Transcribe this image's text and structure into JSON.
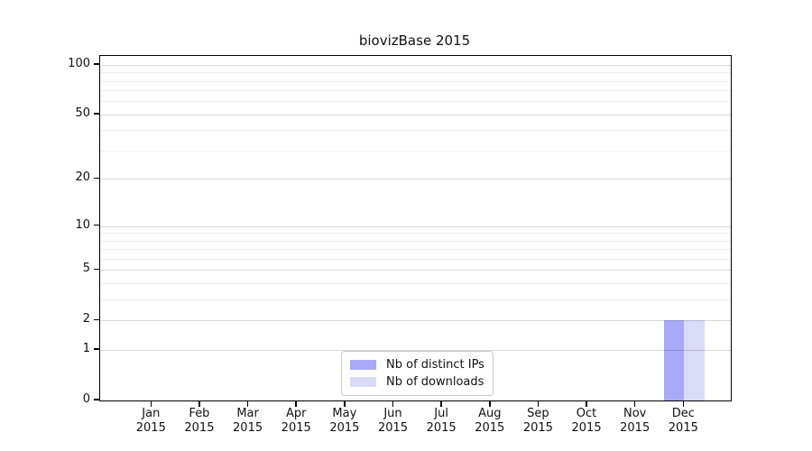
{
  "chart_data": {
    "type": "bar",
    "title": "biovizBase 2015",
    "categories": [
      "Jan 2015",
      "Feb 2015",
      "Mar 2015",
      "Apr 2015",
      "May 2015",
      "Jun 2015",
      "Jul 2015",
      "Aug 2015",
      "Sep 2015",
      "Oct 2015",
      "Nov 2015",
      "Dec 2015"
    ],
    "x_tick_months": [
      "Jan",
      "Feb",
      "Mar",
      "Apr",
      "May",
      "Jun",
      "Jul",
      "Aug",
      "Sep",
      "Oct",
      "Nov",
      "Dec"
    ],
    "x_tick_year": "2015",
    "series": [
      {
        "name": "Nb of distinct IPs",
        "color": "#a9a9f7",
        "values": [
          0,
          0,
          0,
          0,
          0,
          0,
          0,
          0,
          0,
          0,
          0,
          2
        ]
      },
      {
        "name": "Nb of downloads",
        "color": "#dadaf9",
        "values": [
          0,
          0,
          0,
          0,
          0,
          0,
          0,
          0,
          0,
          0,
          0,
          2
        ]
      }
    ],
    "y_axis": {
      "scale": "log1p",
      "tick_values": [
        0,
        1,
        2,
        5,
        10,
        20,
        50,
        100
      ],
      "minor_gridline_values": [
        3,
        4,
        6,
        7,
        8,
        9,
        30,
        40,
        60,
        70,
        80,
        90
      ],
      "ylim": [
        0,
        113
      ]
    },
    "legend": {
      "position": "lower center",
      "entries": [
        "Nb of distinct IPs",
        "Nb of downloads"
      ]
    },
    "grid": "on",
    "colors": {
      "axis_frame": "#000000",
      "major_grid": "rgba(0,0,0,0.155)",
      "minor_grid": "rgba(0,0,0,0.062)",
      "text": "#111111",
      "legend_border": "#cccccc"
    }
  }
}
